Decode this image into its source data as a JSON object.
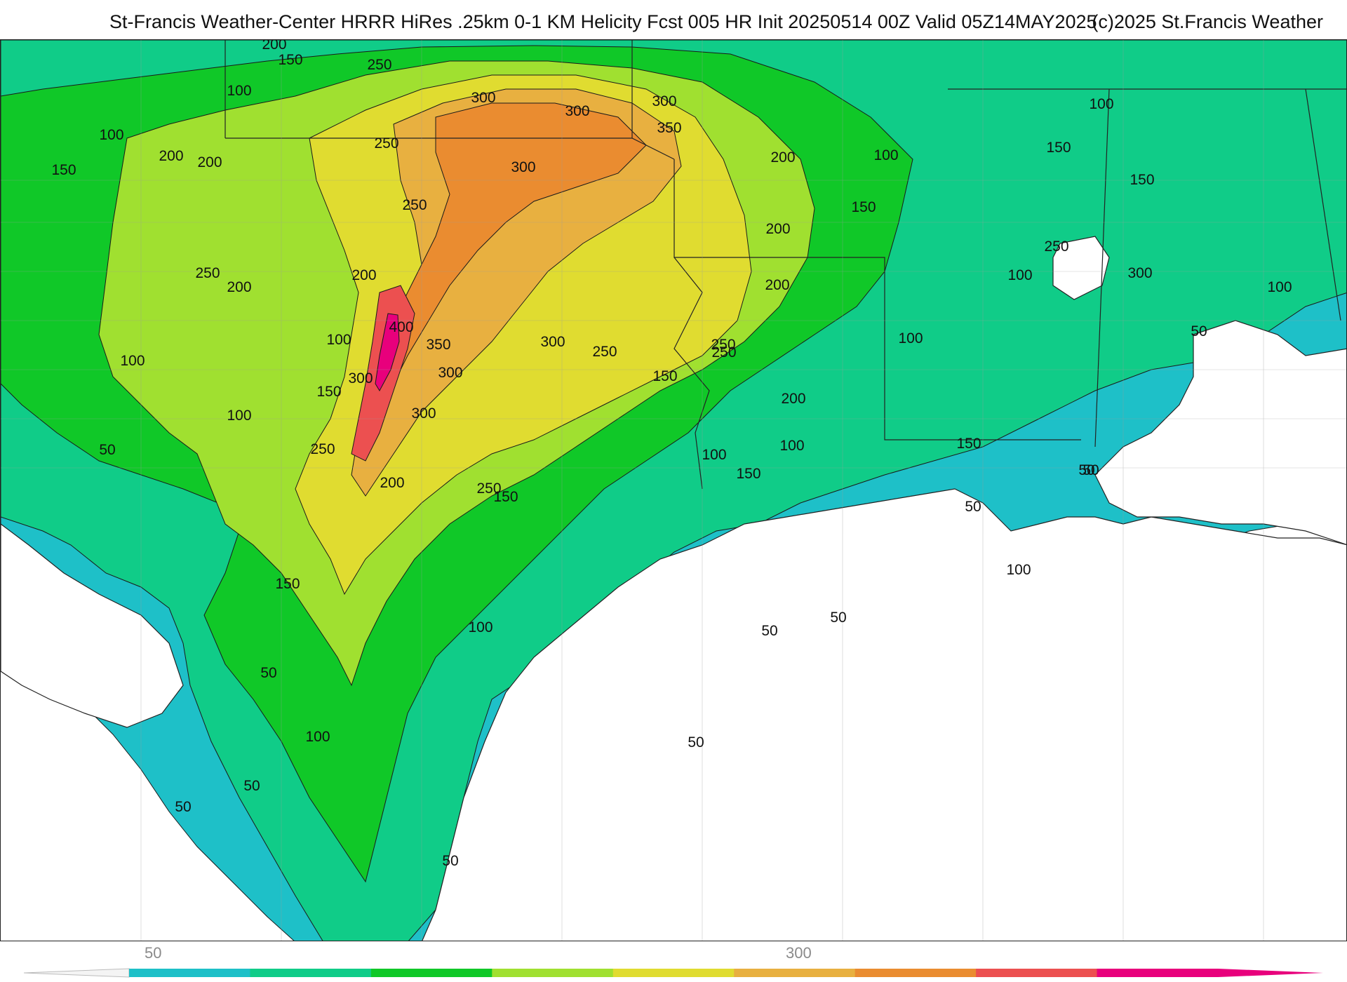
{
  "header": {
    "title": "St-Francis Weather-Center HRRR HiRes .25km 0-1 KM Helicity Fcst 005 HR Init 20250514 00Z  Valid 05Z14MAY2025",
    "copyright": "(c)2025 St.Francis Weather"
  },
  "colorbar": {
    "tick_labels": [
      "50",
      "300"
    ],
    "colors": [
      "#1ec0c8",
      "#10cc88",
      "#10c828",
      "#a0e030",
      "#e0dc30",
      "#e8b040",
      "#ea8c30",
      "#ec5050",
      "#e8007c"
    ]
  },
  "map": {
    "contour_labels": [
      "50",
      "100",
      "150",
      "200",
      "250",
      "300",
      "350",
      "400"
    ],
    "fill_colors": {
      "50": "#1ec0c8",
      "100": "#10cc88",
      "150": "#10c828",
      "200": "#a0e030",
      "250": "#e0dc30",
      "300": "#e8b040",
      "350": "#ea8c30",
      "400": "#ec5050",
      "450": "#e8007c",
      "land_outline": "#444444",
      "county_lines": "#9c9c9c"
    },
    "labels": [
      {
        "text": "200"
      },
      {
        "text": "150"
      },
      {
        "text": "250"
      },
      {
        "text": "100"
      },
      {
        "text": "300"
      },
      {
        "text": "300"
      },
      {
        "text": "100"
      },
      {
        "text": "200"
      },
      {
        "text": "250"
      },
      {
        "text": "300"
      },
      {
        "text": "350"
      },
      {
        "text": "250"
      },
      {
        "text": "150"
      },
      {
        "text": "200"
      },
      {
        "text": "300"
      },
      {
        "text": "200"
      },
      {
        "text": "100"
      },
      {
        "text": "150"
      },
      {
        "text": "100"
      },
      {
        "text": "150"
      },
      {
        "text": "250"
      },
      {
        "text": "300"
      },
      {
        "text": "200"
      },
      {
        "text": "150"
      },
      {
        "text": "100"
      },
      {
        "text": "250"
      },
      {
        "text": "200"
      },
      {
        "text": "200"
      },
      {
        "text": "100"
      },
      {
        "text": "400"
      },
      {
        "text": "350"
      },
      {
        "text": "300"
      },
      {
        "text": "100"
      },
      {
        "text": "150"
      },
      {
        "text": "100"
      },
      {
        "text": "50"
      },
      {
        "text": "300"
      },
      {
        "text": "250"
      },
      {
        "text": "200"
      },
      {
        "text": "150"
      },
      {
        "text": "100"
      },
      {
        "text": "150"
      },
      {
        "text": "50"
      },
      {
        "text": "50"
      },
      {
        "text": "100"
      },
      {
        "text": "50"
      },
      {
        "text": "50"
      },
      {
        "text": "50"
      },
      {
        "text": "100"
      },
      {
        "text": "50"
      },
      {
        "text": "100"
      },
      {
        "text": "50"
      },
      {
        "text": "50"
      },
      {
        "text": "250"
      },
      {
        "text": "300"
      },
      {
        "text": "250"
      },
      {
        "text": "200"
      },
      {
        "text": "150"
      },
      {
        "text": "100"
      },
      {
        "text": "150"
      },
      {
        "text": "100"
      },
      {
        "text": "100"
      },
      {
        "text": "50"
      },
      {
        "text": "50"
      },
      {
        "text": "250"
      },
      {
        "text": "250"
      },
      {
        "text": "300"
      },
      {
        "text": "200"
      },
      {
        "text": "150"
      },
      {
        "text": "50"
      }
    ]
  }
}
